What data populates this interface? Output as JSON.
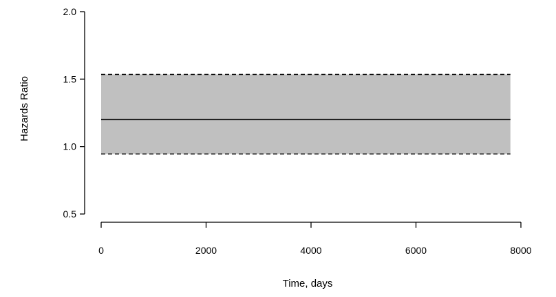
{
  "chart_data": {
    "type": "line",
    "title": "",
    "xlabel": "Time, days",
    "ylabel": "Hazards Ratio",
    "xlim": [
      0,
      8000
    ],
    "ylim": [
      0.5,
      2.0
    ],
    "xticks": [
      0,
      2000,
      4000,
      6000,
      8000
    ],
    "xtick_labels": [
      "0",
      "2000",
      "4000",
      "6000",
      "8000"
    ],
    "yticks": [
      0.5,
      1.0,
      1.5,
      2.0
    ],
    "ytick_labels": [
      "0.5",
      "1.0",
      "1.5",
      "2.0"
    ],
    "grid": false,
    "x_range": [
      0,
      7800
    ],
    "series": [
      {
        "role": "estimate",
        "style": "solid",
        "color": "#000000",
        "x": [
          0,
          7800
        ],
        "y": [
          1.2,
          1.2
        ]
      },
      {
        "role": "upper-bound",
        "style": "dashed",
        "color": "#000000",
        "x": [
          0,
          7800
        ],
        "y": [
          1.535,
          1.535
        ]
      },
      {
        "role": "lower-bound",
        "style": "dashed",
        "color": "#000000",
        "x": [
          0,
          7800
        ],
        "y": [
          0.945,
          0.945
        ]
      }
    ],
    "band_color": "#c0c0c0"
  }
}
